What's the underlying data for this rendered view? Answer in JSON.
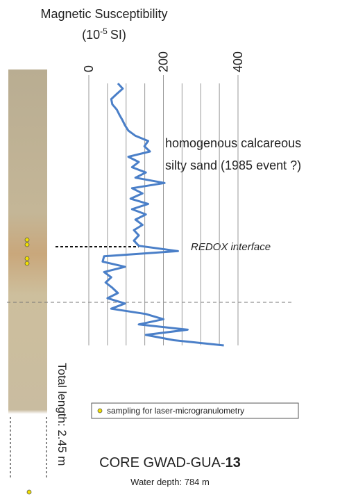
{
  "chart_data": {
    "type": "line",
    "title": "Magnetic Susceptibility",
    "unit_prefix": "(10",
    "unit_exponent": "-5",
    "unit_suffix": "SI)",
    "values": [
      78,
      91,
      75,
      60,
      63,
      75,
      82,
      90,
      97,
      106,
      125,
      159,
      149,
      164,
      106,
      134,
      116,
      153,
      125,
      203,
      116,
      144,
      112,
      159,
      116,
      153,
      125,
      144,
      121,
      134,
      121,
      134,
      239,
      41,
      37,
      97,
      41,
      60,
      45,
      63,
      78,
      50,
      97,
      60,
      153,
      200,
      134,
      265,
      153,
      228,
      362
    ],
    "color": "#4a7fc8",
    "xlim": [
      0,
      400
    ],
    "xticks": [
      0,
      200,
      400
    ],
    "minor_xticks": [
      50,
      100,
      150,
      250,
      300,
      350
    ],
    "grid": true,
    "annotations": {
      "unit_description_1": "homogenous calcareous",
      "unit_description_2": "silty sand (1985 event ?)",
      "redox": "REDOX interface",
      "total_length": "Total length: 2.45 m"
    },
    "legend_text": "sampling for laser-microgranulometry",
    "core_name": "CORE GWAD-GUA-",
    "core_number": "13",
    "water_depth": "Water depth: 784 m"
  }
}
